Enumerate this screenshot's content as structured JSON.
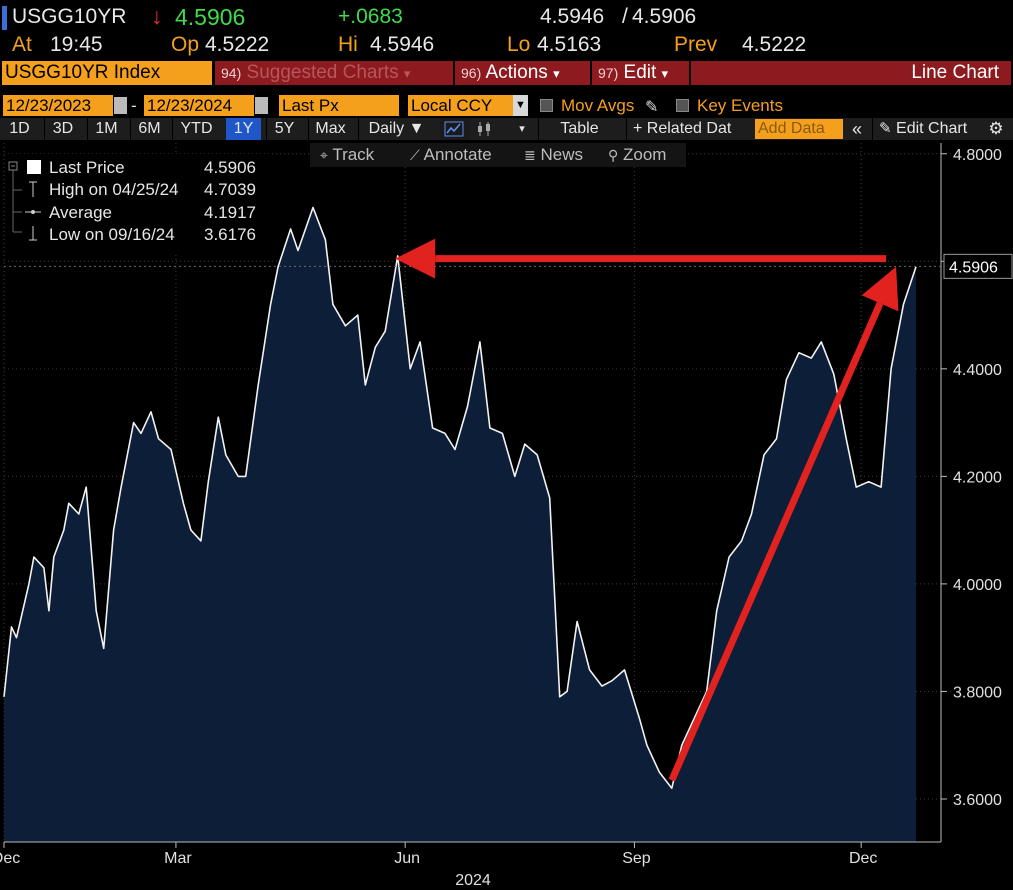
{
  "header": {
    "ticker": "USGG10YR",
    "arrow": "↓",
    "last": "4.5906",
    "change": "+.0683",
    "bid_ask_a": "4.5946",
    "bid_ask_sep": "/",
    "bid_ask_b": "4.5906",
    "at_label": "At",
    "at_value": "19:45",
    "op_label": "Op",
    "op_value": "4.5222",
    "hi_label": "Hi",
    "hi_value": "4.5946",
    "lo_label": "Lo",
    "lo_value": "4.5163",
    "prev_label": "Prev",
    "prev_value": "4.5222"
  },
  "toolbar1": {
    "index_label": "USGG10YR Index",
    "suggested_num": "94)",
    "suggested_label": "Suggested Charts",
    "suggested_caret": "▾",
    "actions_num": "96)",
    "actions_label": "Actions",
    "actions_caret": "▾",
    "edit_num": "97)",
    "edit_label": "Edit",
    "edit_caret": "▾",
    "chart_type": "Line Chart"
  },
  "toolbar2": {
    "start_date": "12/23/2023",
    "dash": "-",
    "end_date": "12/23/2024",
    "field": "Last Px",
    "currency": "Local CCY",
    "mov_avgs": "Mov Avgs",
    "key_events": "Key Events"
  },
  "toolbar3": {
    "periods": [
      "1D",
      "3D",
      "1M",
      "6M",
      "YTD",
      "1Y",
      "5Y",
      "Max"
    ],
    "selected_period": "1Y",
    "frequency": "Daily ▼",
    "table": "Table",
    "related": "+ Related Dat",
    "add_data": "Add Data",
    "collapse": "«",
    "edit_chart": "Edit Chart"
  },
  "chart_tools": {
    "track": "Track",
    "annotate": "Annotate",
    "news": "News",
    "zoom": "Zoom"
  },
  "legend": {
    "last_label": "Last Price",
    "last_value": "4.5906",
    "high_label": "High on 04/25/24",
    "high_value": "4.7039",
    "avg_label": "Average",
    "avg_value": "4.1917",
    "low_label": "Low on 09/16/24",
    "low_value": "3.6176"
  },
  "colors": {
    "accent_orange": "#f4a01c",
    "button_red": "#8c1a1f",
    "area_fill": "#0c1e38",
    "line": "#f2f2f2",
    "arrow_red": "#e2221f",
    "selected_blue": "#1f56c8"
  },
  "chart_data": {
    "type": "area",
    "title": "",
    "xlabel": "2024",
    "ylabel": "",
    "ylim": [
      3.52,
      4.82
    ],
    "yticks": [
      "4.8000",
      "4.6000",
      "4.4000",
      "4.2000",
      "4.0000",
      "3.8000",
      "3.6000"
    ],
    "ytick_values": [
      4.8,
      4.6,
      4.4,
      4.2,
      4.0,
      3.8,
      3.6
    ],
    "xticks": [
      "Dec",
      "Mar",
      "Jun",
      "Sep",
      "Dec"
    ],
    "xtick_dates": [
      "2023-12-23",
      "2024-03-01",
      "2024-06-01",
      "2024-09-01",
      "2024-12-01"
    ],
    "x_range": [
      "2023-12-23",
      "2024-12-23"
    ],
    "last_value_label": "4.5906",
    "last_value": 4.5906,
    "grid": true,
    "series": [
      {
        "x": [
          "2023-12-23",
          "2023-12-26",
          "2023-12-28",
          "2024-01-02",
          "2024-01-04",
          "2024-01-08",
          "2024-01-10",
          "2024-01-12",
          "2024-01-16",
          "2024-01-18",
          "2024-01-22",
          "2024-01-25",
          "2024-01-29",
          "2024-02-01",
          "2024-02-05",
          "2024-02-08",
          "2024-02-13",
          "2024-02-16",
          "2024-02-20",
          "2024-02-23",
          "2024-02-28",
          "2024-03-04",
          "2024-03-07",
          "2024-03-11",
          "2024-03-14",
          "2024-03-18",
          "2024-03-21",
          "2024-03-26",
          "2024-03-29",
          "2024-04-03",
          "2024-04-08",
          "2024-04-11",
          "2024-04-16",
          "2024-04-19",
          "2024-04-25",
          "2024-04-30",
          "2024-05-03",
          "2024-05-08",
          "2024-05-13",
          "2024-05-16",
          "2024-05-20",
          "2024-05-24",
          "2024-05-29",
          "2024-06-03",
          "2024-06-07",
          "2024-06-12",
          "2024-06-17",
          "2024-06-21",
          "2024-06-26",
          "2024-07-01",
          "2024-07-05",
          "2024-07-10",
          "2024-07-15",
          "2024-07-19",
          "2024-07-24",
          "2024-07-29",
          "2024-08-02",
          "2024-08-05",
          "2024-08-09",
          "2024-08-14",
          "2024-08-19",
          "2024-08-23",
          "2024-08-28",
          "2024-09-03",
          "2024-09-06",
          "2024-09-11",
          "2024-09-16",
          "2024-09-20",
          "2024-09-25",
          "2024-09-30",
          "2024-10-04",
          "2024-10-09",
          "2024-10-14",
          "2024-10-18",
          "2024-10-23",
          "2024-10-28",
          "2024-11-01",
          "2024-11-06",
          "2024-11-11",
          "2024-11-15",
          "2024-11-20",
          "2024-11-25",
          "2024-11-29",
          "2024-12-04",
          "2024-12-09",
          "2024-12-13",
          "2024-12-18",
          "2024-12-23"
        ],
        "y": [
          3.79,
          3.92,
          3.9,
          4.0,
          4.05,
          4.03,
          3.95,
          4.05,
          4.1,
          4.15,
          4.13,
          4.18,
          3.95,
          3.88,
          4.1,
          4.18,
          4.3,
          4.28,
          4.32,
          4.27,
          4.25,
          4.15,
          4.1,
          4.08,
          4.19,
          4.31,
          4.24,
          4.2,
          4.2,
          4.37,
          4.52,
          4.59,
          4.66,
          4.62,
          4.7,
          4.64,
          4.52,
          4.48,
          4.5,
          4.37,
          4.44,
          4.47,
          4.61,
          4.4,
          4.45,
          4.29,
          4.28,
          4.25,
          4.33,
          4.45,
          4.29,
          4.28,
          4.2,
          4.26,
          4.24,
          4.16,
          3.79,
          3.8,
          3.93,
          3.84,
          3.81,
          3.82,
          3.84,
          3.75,
          3.7,
          3.65,
          3.62,
          3.7,
          3.75,
          3.8,
          3.95,
          4.05,
          4.08,
          4.13,
          4.24,
          4.27,
          4.38,
          4.43,
          4.42,
          4.45,
          4.39,
          4.27,
          4.18,
          4.19,
          4.18,
          4.4,
          4.52,
          4.59
        ]
      }
    ],
    "annotations": [
      {
        "type": "arrow",
        "from": [
          "2024-12-11",
          4.605
        ],
        "to": [
          "2024-05-28",
          4.605
        ]
      },
      {
        "type": "arrow",
        "from": [
          "2024-09-16",
          3.635
        ],
        "to": [
          "2024-12-15",
          4.59
        ]
      }
    ]
  }
}
